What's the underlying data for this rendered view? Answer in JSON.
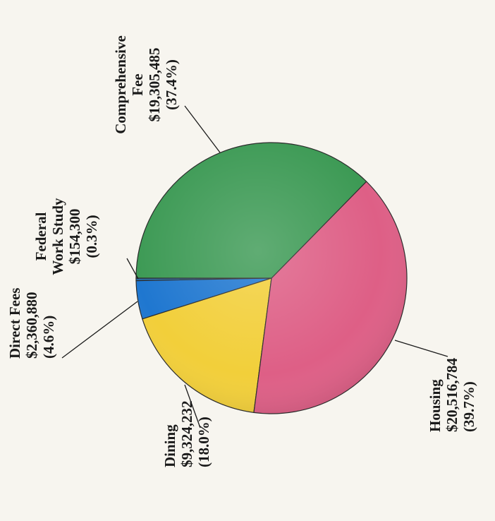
{
  "chart_data": {
    "type": "pie",
    "start_angle_deg": 180,
    "direction": "counterclockwise",
    "slices": [
      {
        "key": "federal",
        "name": [
          "Federal",
          "Work Study"
        ],
        "value_label": "$154,300",
        "value": 154300,
        "percent_label": "(0.3%)",
        "percent": 0.3,
        "color": "#2c6fa8"
      },
      {
        "key": "direct",
        "name": [
          "Direct Fees"
        ],
        "value_label": "$2,360,880",
        "value": 2360880,
        "percent_label": "(4.6%)",
        "percent": 4.6,
        "color": "#1f77d0"
      },
      {
        "key": "dining",
        "name": [
          "Dining"
        ],
        "value_label": "$9,324,232",
        "value": 9324232,
        "percent_label": "(18.0%)",
        "percent": 18.0,
        "color": "#f2cf3a"
      },
      {
        "key": "housing",
        "name": [
          "Housing"
        ],
        "value_label": "$20,516,784",
        "value": 20516784,
        "percent_label": "(39.7%)",
        "percent": 39.7,
        "color": "#de5f86"
      },
      {
        "key": "comprehensive",
        "name": [
          "Comprehensive",
          "Fee"
        ],
        "value_label": "$19,305,485",
        "value": 19305485,
        "percent_label": "(37.4%)",
        "percent": 37.4,
        "color": "#3d9a55"
      }
    ]
  }
}
